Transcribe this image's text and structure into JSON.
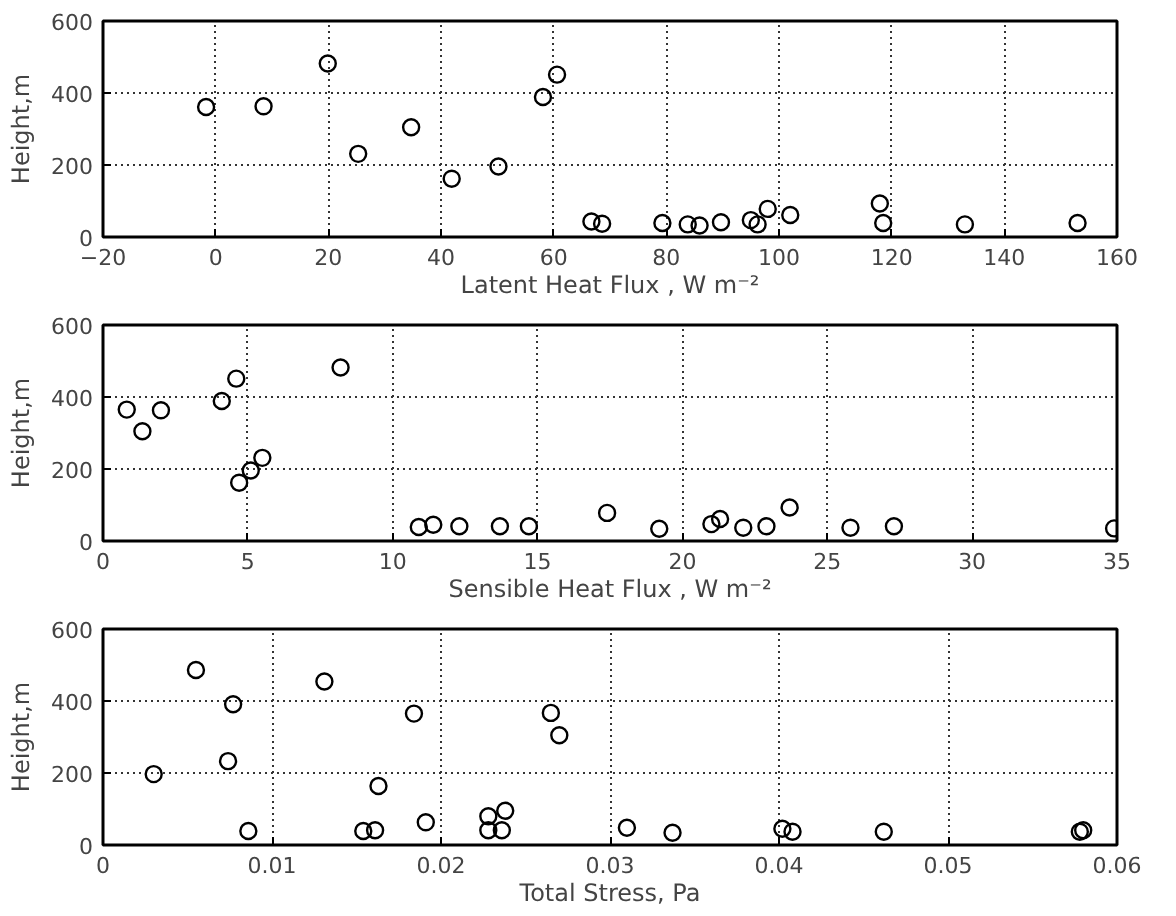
{
  "chart_data": [
    {
      "type": "scatter",
      "xlabel": "Latent Heat Flux , W m⁻²",
      "ylabel": "Height,m",
      "marker": "circle",
      "grid": true,
      "xlim": [
        -20,
        160
      ],
      "xticks": [
        -20,
        0,
        20,
        40,
        60,
        80,
        100,
        120,
        140,
        160
      ],
      "ylim": [
        0,
        600
      ],
      "yticks": [
        0,
        200,
        400,
        600
      ],
      "series": [
        {
          "color": "#000000",
          "x": [
            -1.7,
            8.5,
            19.9,
            25.3,
            34.7,
            41.9,
            50.2,
            58.1,
            60.6,
            66.7,
            68.6,
            79.3,
            79.4,
            83.8,
            85.9,
            89.7,
            95,
            96.2,
            98,
            102,
            117.9,
            118.5,
            133,
            153
          ],
          "values": [
            361,
            363,
            482,
            231,
            305,
            162,
            196,
            389,
            451,
            43,
            37,
            39,
            null,
            35,
            32,
            41,
            47,
            35,
            78,
            61,
            93,
            39,
            35,
            39
          ]
        }
      ]
    },
    {
      "type": "scatter",
      "xlabel": "Sensible Heat Flux , W m⁻²",
      "ylabel": "Height,m",
      "marker": "circle",
      "grid": true,
      "xlim": [
        0,
        35
      ],
      "xticks": [
        0,
        5,
        10,
        15,
        20,
        25,
        30,
        35
      ],
      "ylim": [
        0,
        600
      ],
      "yticks": [
        0,
        200,
        400,
        600
      ],
      "series": [
        {
          "color": "#000000",
          "x": [
            0.82,
            1.36,
            2.0,
            4.1,
            4.6,
            4.7,
            5.1,
            5.5,
            8.2,
            10.9,
            11.4,
            12.3,
            13.7,
            14.7,
            17.4,
            19.2,
            21.0,
            21.3,
            22.1,
            22.9,
            23.7,
            25.8,
            27.3,
            34.9
          ],
          "values": [
            365,
            305,
            363,
            389,
            451,
            162,
            196,
            231,
            482,
            39,
            45,
            41,
            41,
            41,
            78,
            34,
            47,
            61,
            37,
            41,
            93,
            37,
            41,
            35
          ]
        }
      ]
    },
    {
      "type": "scatter",
      "xlabel": "Total Stress, Pa",
      "ylabel": "Height,m",
      "marker": "circle",
      "grid": true,
      "xlim": [
        0,
        0.06
      ],
      "xticks": [
        0,
        0.01,
        0.02,
        0.03,
        0.04,
        0.05,
        0.06
      ],
      "ylim": [
        0,
        600
      ],
      "yticks": [
        0,
        200,
        400,
        600
      ],
      "series": [
        {
          "color": "#000000",
          "x": [
            0.0055,
            0.0131,
            0.0077,
            0.0184,
            0.0265,
            0.027,
            0.0074,
            0.003,
            0.0163,
            0.0086,
            0.0154,
            0.0161,
            0.0191,
            0.0228,
            0.0228,
            0.0236,
            0.0238,
            0.031,
            0.0337,
            0.0402,
            0.0408,
            0.0462,
            0.0578,
            0.058
          ],
          "values": [
            486,
            454,
            391,
            365,
            367,
            305,
            233,
            197,
            164,
            39,
            39,
            41,
            63,
            41,
            80,
            41,
            95,
            48,
            34,
            45,
            37,
            37,
            37,
            41
          ]
        }
      ]
    }
  ]
}
